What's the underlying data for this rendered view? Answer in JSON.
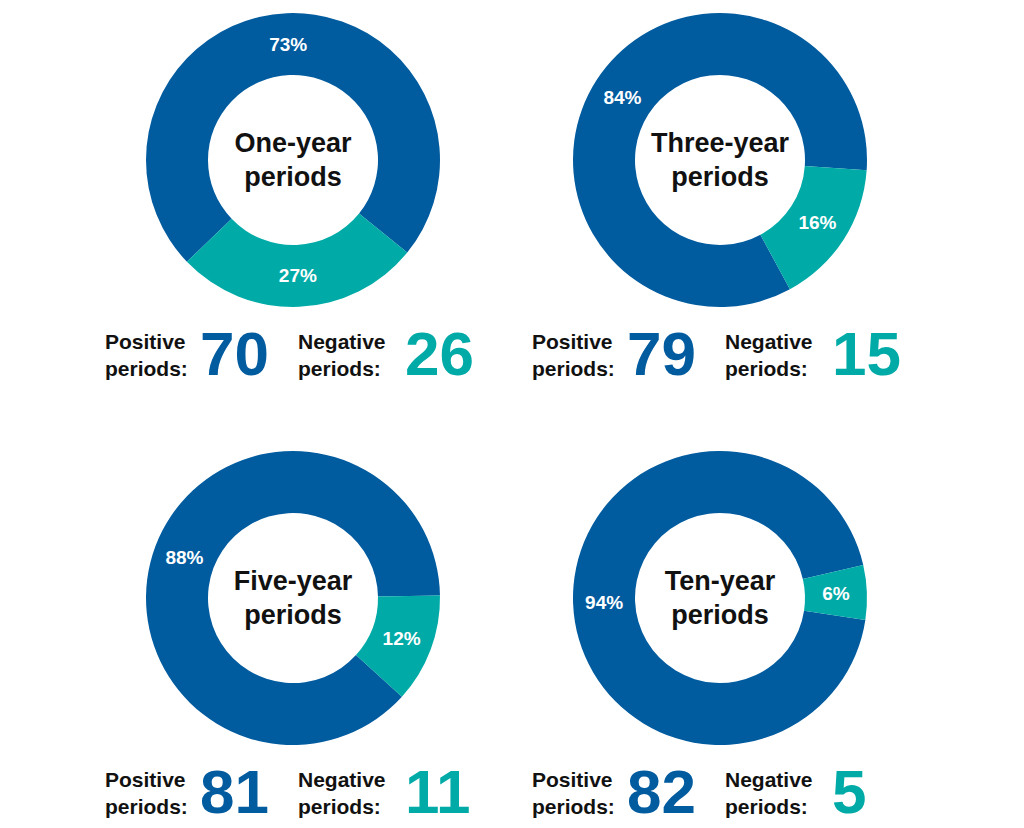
{
  "chart_data": [
    {
      "type": "donut",
      "title": "One-year periods",
      "categories": [
        "Positive periods:",
        "Negative periods:"
      ],
      "values": [
        73,
        27
      ],
      "value_labels": [
        "73%",
        "27%"
      ],
      "counts": [
        70,
        26
      ],
      "colors": [
        "#005b9f",
        "#00aba7"
      ],
      "data_labels": true
    },
    {
      "type": "donut",
      "title": "Three-year periods",
      "categories": [
        "Positive periods:",
        "Negative periods:"
      ],
      "values": [
        84,
        16
      ],
      "value_labels": [
        "84%",
        "16%"
      ],
      "counts": [
        79,
        15
      ],
      "colors": [
        "#005b9f",
        "#00aba7"
      ],
      "data_labels": true
    },
    {
      "type": "donut",
      "title": "Five-year periods",
      "categories": [
        "Positive periods:",
        "Negative periods:"
      ],
      "values": [
        88,
        12
      ],
      "value_labels": [
        "88%",
        "12%"
      ],
      "counts": [
        81,
        11
      ],
      "colors": [
        "#005b9f",
        "#00aba7"
      ],
      "data_labels": true
    },
    {
      "type": "donut",
      "title": "Ten-year periods",
      "categories": [
        "Positive periods:",
        "Negative periods:"
      ],
      "values": [
        94,
        6
      ],
      "value_labels": [
        "94%",
        "6%"
      ],
      "counts": [
        82,
        5
      ],
      "colors": [
        "#005b9f",
        "#00aba7"
      ],
      "data_labels": true
    }
  ]
}
